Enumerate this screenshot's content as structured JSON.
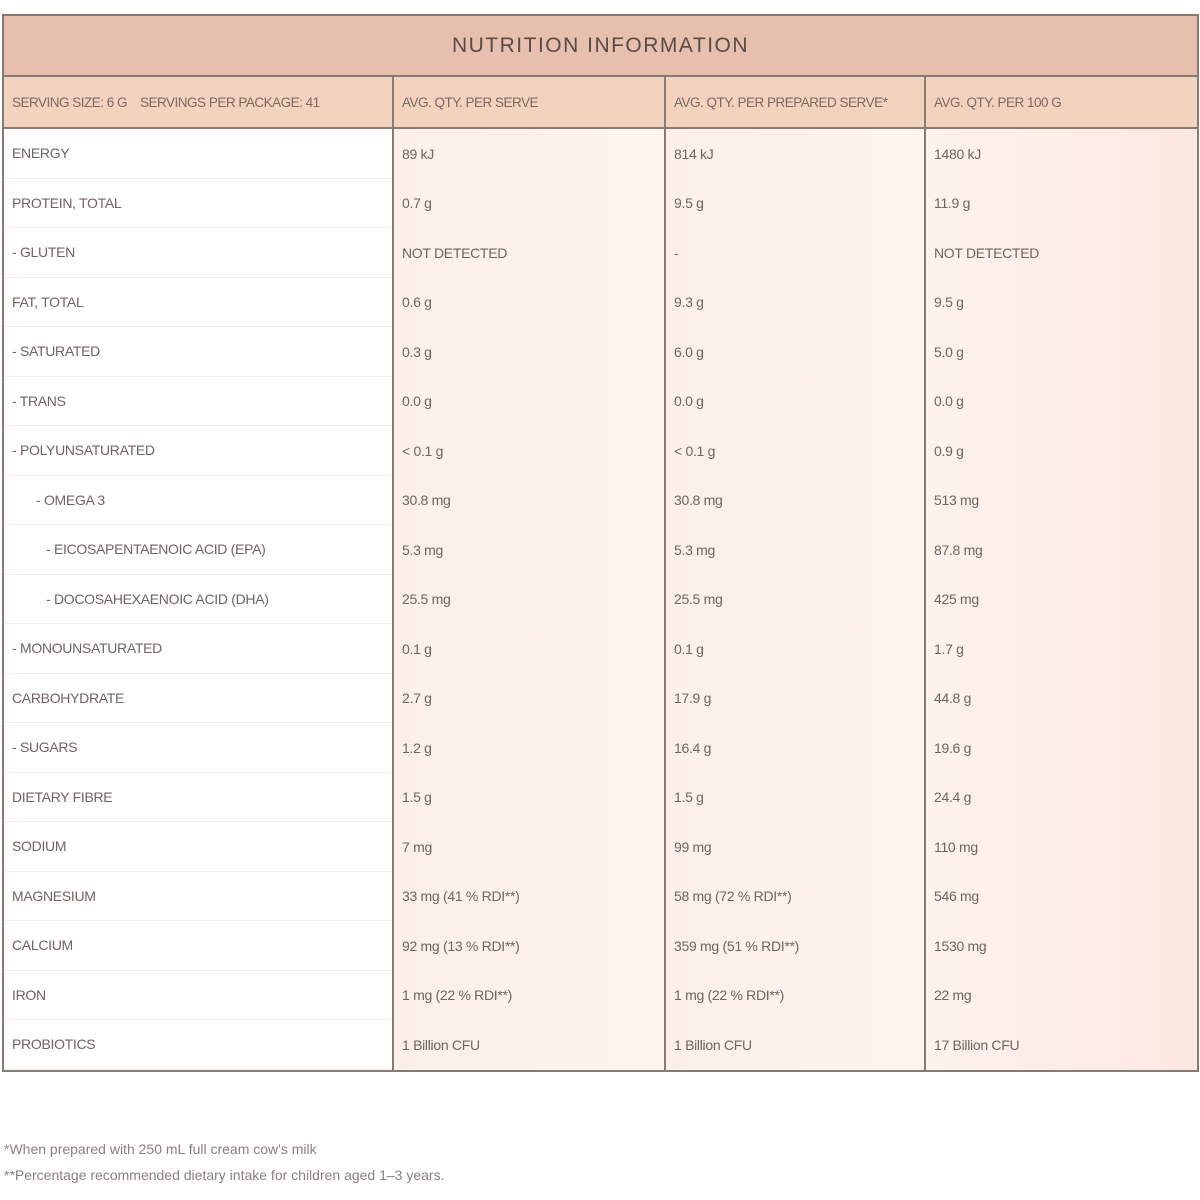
{
  "title": "NUTRITION INFORMATION",
  "header": {
    "serving": "SERVING SIZE: 6 G    SERVINGS PER PACKAGE: 41",
    "col1": "AVG. QTY. PER SERVE",
    "col2": "AVG. QTY. PER PREPARED SERVE*",
    "col3": "AVG. QTY. PER 100 G"
  },
  "rows": [
    {
      "name": "ENERGY",
      "a": "89 kJ",
      "b": "814 kJ",
      "c": "1480 kJ"
    },
    {
      "name": "PROTEIN, TOTAL",
      "a": "0.7 g",
      "b": "9.5 g",
      "c": "11.9 g"
    },
    {
      "name": "- GLUTEN",
      "a": "NOT DETECTED",
      "b": "-",
      "c": "NOT DETECTED"
    },
    {
      "name": "FAT, TOTAL",
      "a": "0.6 g",
      "b": "9.3 g",
      "c": "9.5 g"
    },
    {
      "name": "- SATURATED",
      "a": "0.3 g",
      "b": "6.0 g",
      "c": "5.0 g"
    },
    {
      "name": "- TRANS",
      "a": "0.0 g",
      "b": "0.0 g",
      "c": "0.0 g"
    },
    {
      "name": "- POLYUNSATURATED",
      "a": "< 0.1 g",
      "b": "< 0.1 g",
      "c": "0.9 g"
    },
    {
      "name": "- OMEGA 3",
      "a": "30.8 mg",
      "b": "30.8 mg",
      "c": "513 mg"
    },
    {
      "name": "- EICOSAPENTAENOIC ACID (EPA)",
      "a": "5.3 mg",
      "b": "5.3 mg",
      "c": "87.8 mg"
    },
    {
      "name": "- DOCOSAHEXAENOIC ACID (DHA)",
      "a": "25.5 mg",
      "b": "25.5 mg",
      "c": "425 mg"
    },
    {
      "name": "- MONOUNSATURATED",
      "a": "0.1 g",
      "b": "0.1 g",
      "c": "1.7 g"
    },
    {
      "name": "CARBOHYDRATE",
      "a": "2.7 g",
      "b": "17.9 g",
      "c": "44.8 g"
    },
    {
      "name": "- SUGARS",
      "a": "1.2 g",
      "b": "16.4 g",
      "c": "19.6 g"
    },
    {
      "name": "DIETARY FIBRE",
      "a": "1.5 g",
      "b": "1.5 g",
      "c": "24.4 g"
    },
    {
      "name": "SODIUM",
      "a": "7 mg",
      "b": "99 mg",
      "c": "110 mg"
    },
    {
      "name": "MAGNESIUM",
      "a": "33 mg (41 % RDI**)",
      "b": "58 mg (72 % RDI**)",
      "c": "546 mg"
    },
    {
      "name": "CALCIUM",
      "a": "92 mg (13 % RDI**)",
      "b": "359 mg (51 % RDI**)",
      "c": "1530 mg"
    },
    {
      "name": "IRON",
      "a": "1 mg (22 % RDI**)",
      "b": "1 mg (22 % RDI**)",
      "c": "22 mg"
    },
    {
      "name": "PROBIOTICS",
      "a": "1 Billion CFU",
      "b": "1 Billion CFU",
      "c": "17 Billion CFU"
    }
  ],
  "notes": [
    "*When prepared with 250 mL full cream cow's milk",
    "**Percentage recommended dietary intake for children aged 1–3 years."
  ]
}
